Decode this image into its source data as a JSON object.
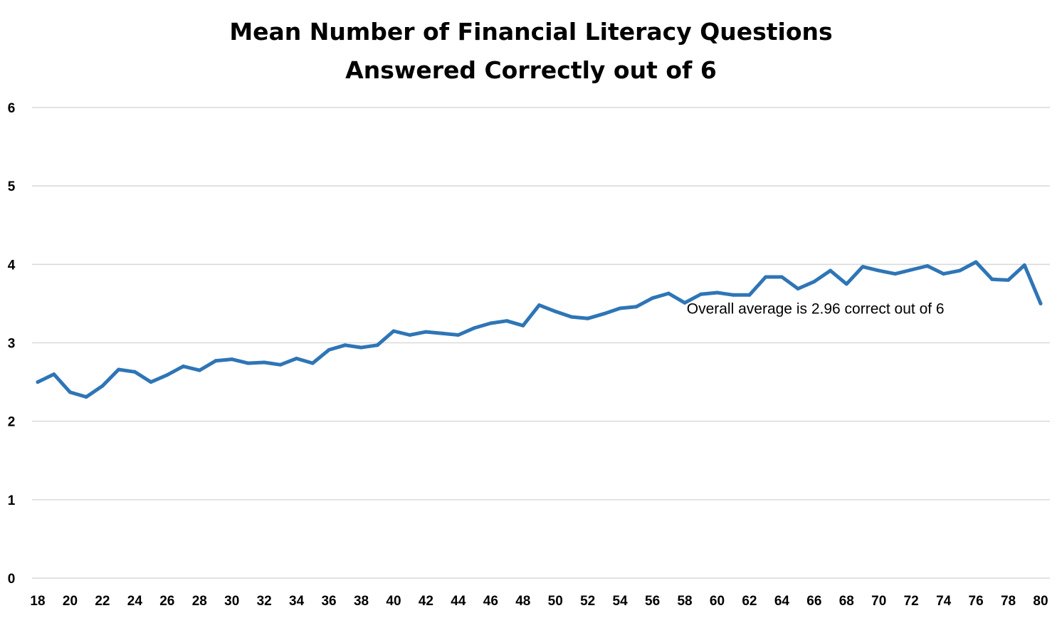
{
  "chart_data": {
    "type": "line",
    "title_lines": [
      "Mean Number of Financial Literacy Questions",
      "Answered Correctly out of 6"
    ],
    "xlabel": "",
    "ylabel": "",
    "ylim": [
      0,
      6
    ],
    "yticks": [
      0,
      1,
      2,
      3,
      4,
      5,
      6
    ],
    "xlim": [
      18,
      80
    ],
    "xticks": [
      18,
      20,
      22,
      24,
      26,
      28,
      30,
      32,
      34,
      36,
      38,
      40,
      42,
      44,
      46,
      48,
      50,
      52,
      54,
      56,
      58,
      60,
      62,
      64,
      66,
      68,
      70,
      72,
      74,
      76,
      78,
      80
    ],
    "grid": true,
    "legend": "none",
    "line_color": "#2e75b6",
    "x": [
      18,
      19,
      20,
      21,
      22,
      23,
      24,
      25,
      26,
      27,
      28,
      29,
      30,
      31,
      32,
      33,
      34,
      35,
      36,
      37,
      38,
      39,
      40,
      41,
      42,
      43,
      44,
      45,
      46,
      47,
      48,
      49,
      50,
      51,
      52,
      53,
      54,
      55,
      56,
      57,
      58,
      59,
      60,
      61,
      62,
      63,
      64,
      65,
      66,
      67,
      68,
      69,
      70,
      71,
      72,
      73,
      74,
      75,
      76,
      77,
      78,
      79,
      80
    ],
    "series": [
      {
        "values": [
          2.5,
          2.6,
          2.37,
          2.31,
          2.45,
          2.66,
          2.63,
          2.5,
          2.59,
          2.7,
          2.65,
          2.77,
          2.79,
          2.74,
          2.75,
          2.72,
          2.8,
          2.74,
          2.91,
          2.97,
          2.94,
          2.97,
          3.15,
          3.1,
          3.14,
          3.12,
          3.1,
          3.19,
          3.25,
          3.28,
          3.22,
          3.48,
          3.4,
          3.33,
          3.31,
          3.37,
          3.44,
          3.46,
          3.57,
          3.63,
          3.51,
          3.62,
          3.64,
          3.61,
          3.61,
          3.84,
          3.84,
          3.69,
          3.78,
          3.92,
          3.75,
          3.97,
          3.92,
          3.88,
          3.93,
          3.98,
          3.88,
          3.92,
          4.03,
          3.81,
          3.8,
          3.99,
          3.5
        ]
      }
    ],
    "annotations": [
      {
        "text": "Overall average is 2.96 correct out of 6",
        "x": 59,
        "y": 3.37
      }
    ]
  }
}
